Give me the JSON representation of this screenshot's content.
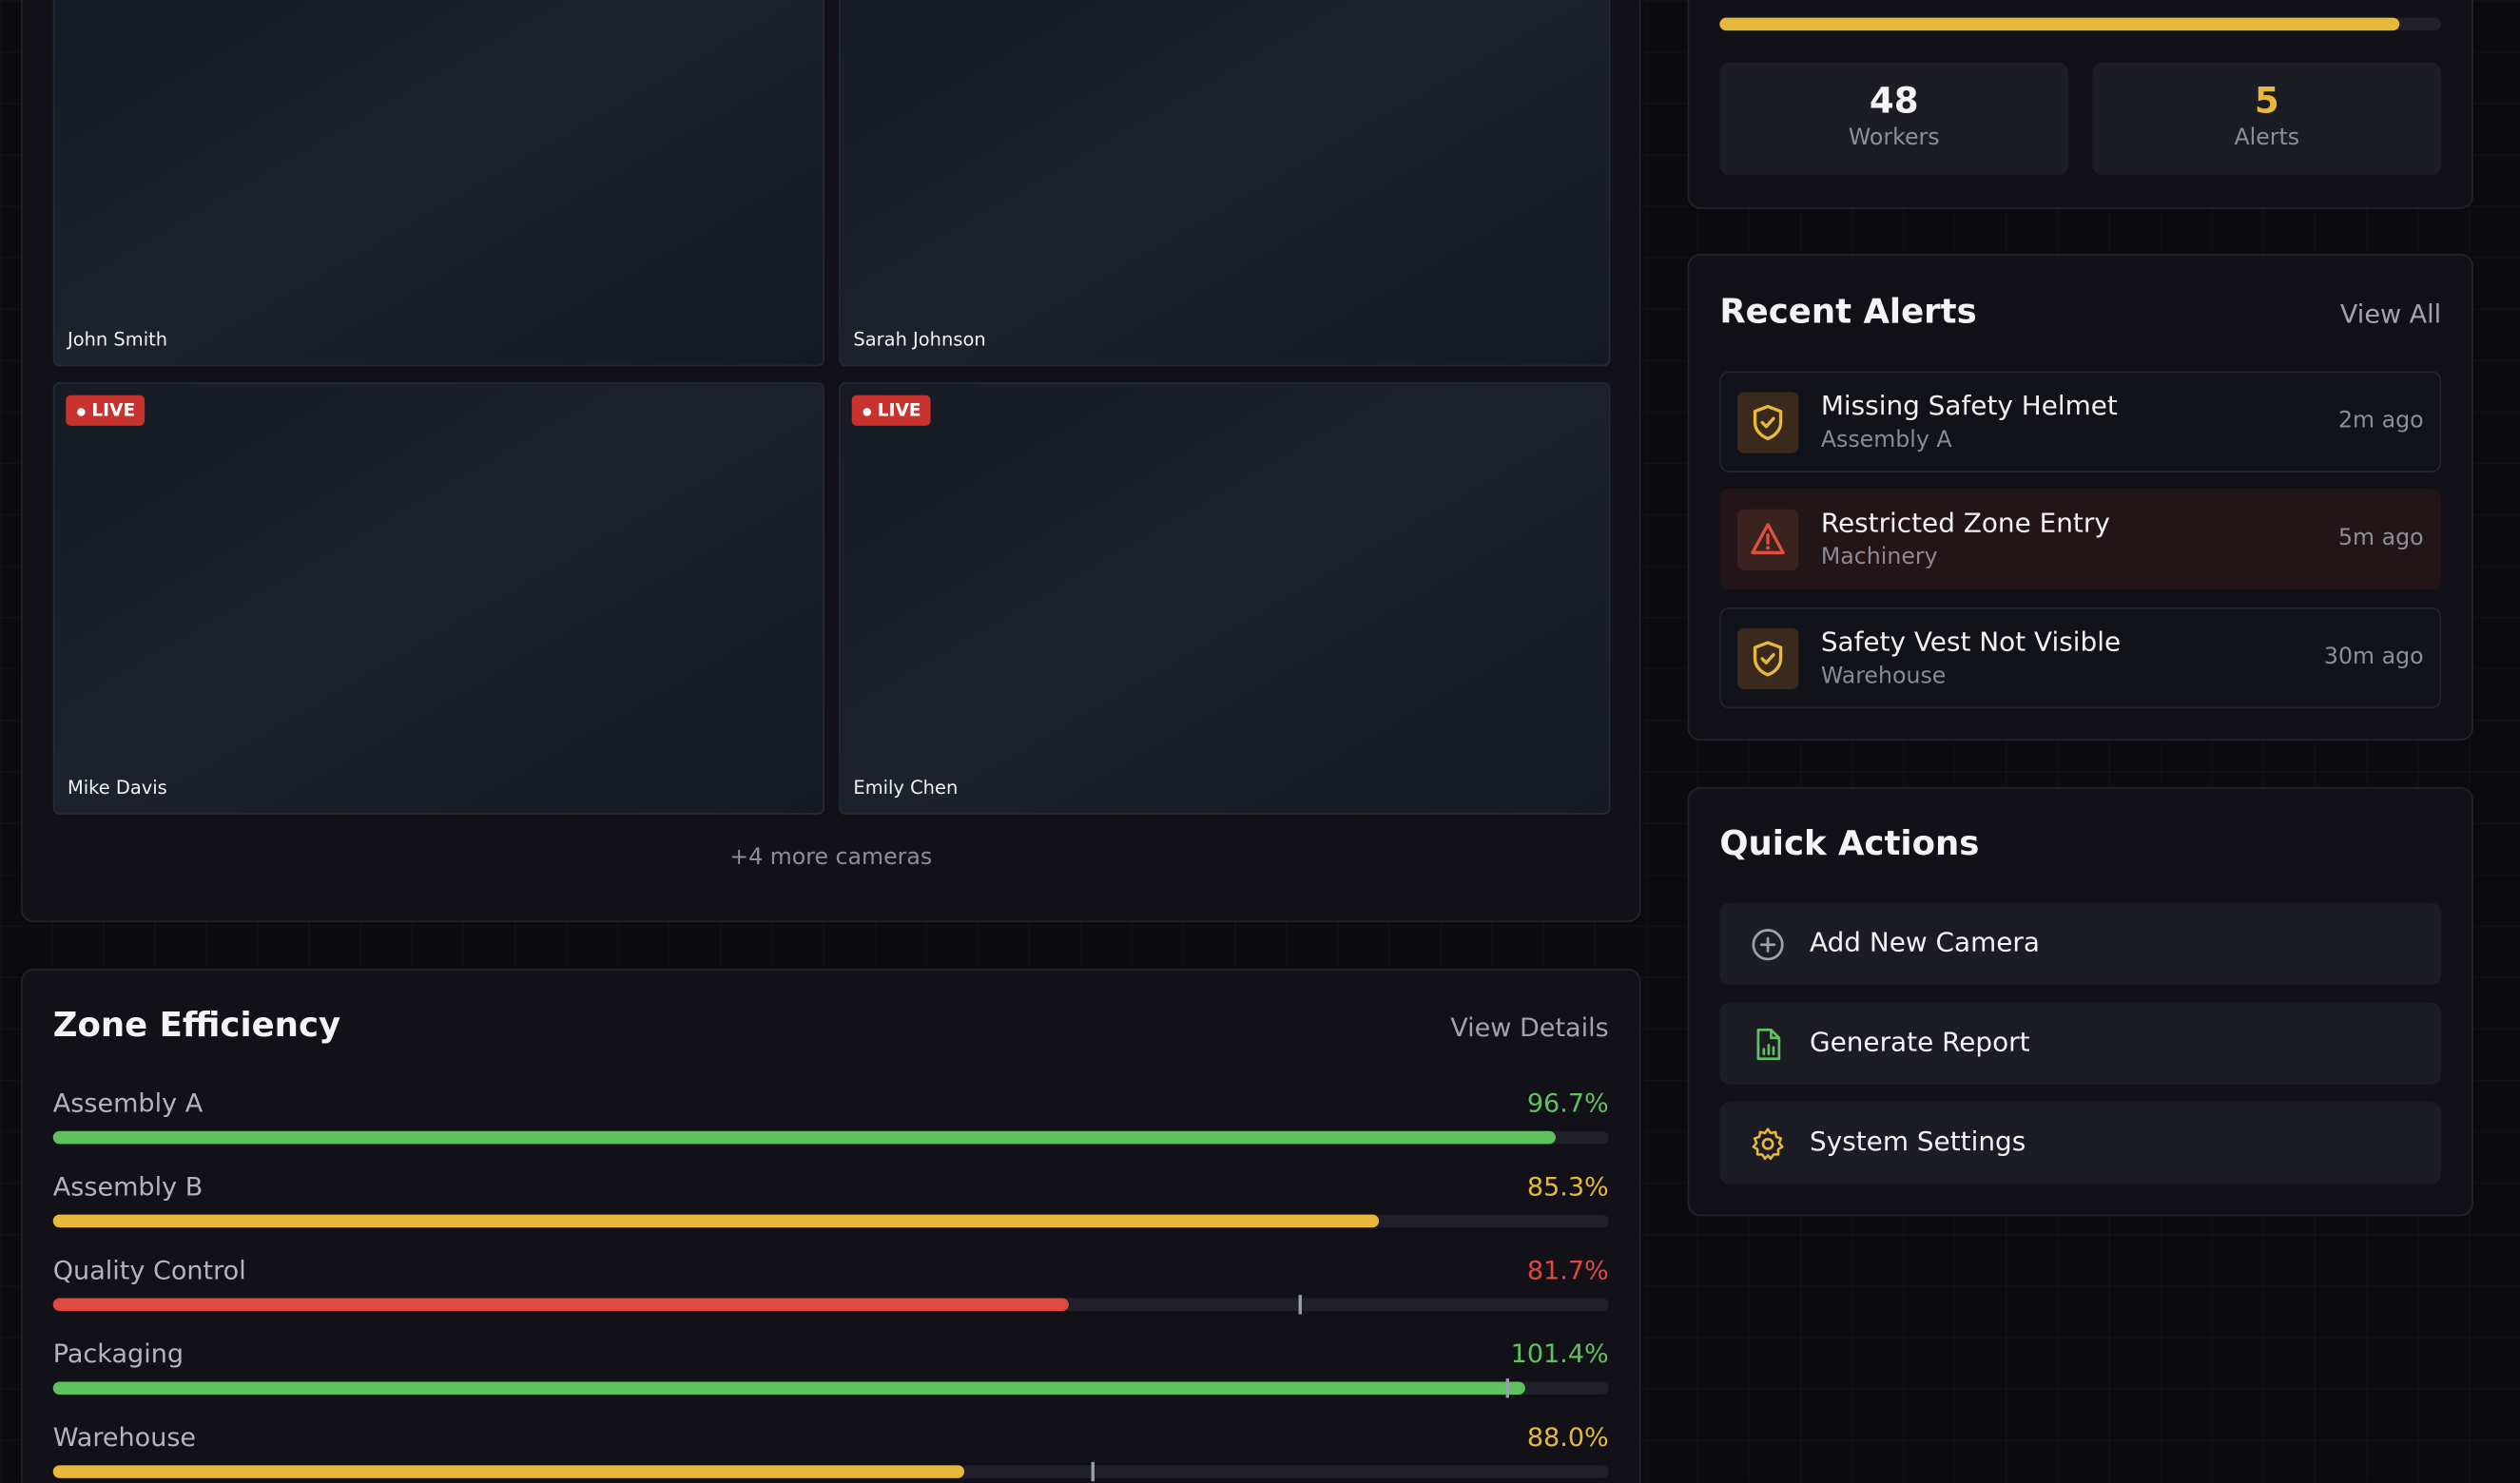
{
  "status": {
    "stats": [
      {
        "value": "48",
        "label": "Workers"
      },
      {
        "value": "5",
        "label": "Alerts"
      }
    ]
  },
  "cameras": [
    {
      "name": "John Smith"
    },
    {
      "name": "Sarah Johnson"
    },
    {
      "name": "Mike Davis",
      "badge": "LIVE"
    },
    {
      "name": "Emily Chen",
      "badge": "LIVE"
    }
  ],
  "more_cameras": "+4 more cameras",
  "zone_efficiency": {
    "title": "Zone Efficiency",
    "link": "View Details",
    "zones": [
      {
        "name": "Assembly A",
        "value": "96.7%"
      },
      {
        "name": "Assembly B",
        "value": "85.3%"
      },
      {
        "name": "Quality Control",
        "value": "81.7%"
      },
      {
        "name": "Packaging",
        "value": "101.4%"
      },
      {
        "name": "Warehouse",
        "value": "88.0%"
      }
    ]
  },
  "recent_alerts": {
    "title": "Recent Alerts",
    "link": "View All",
    "items": [
      {
        "title": "Missing Safety Helmet",
        "zone": "Assembly A",
        "time": "2m ago"
      },
      {
        "title": "Restricted Zone Entry",
        "zone": "Machinery",
        "time": "5m ago"
      },
      {
        "title": "Safety Vest Not Visible",
        "zone": "Warehouse",
        "time": "30m ago"
      }
    ]
  },
  "quick_actions": {
    "title": "Quick Actions",
    "items": [
      "Add New Camera",
      "Generate Report",
      "System Settings"
    ]
  }
}
